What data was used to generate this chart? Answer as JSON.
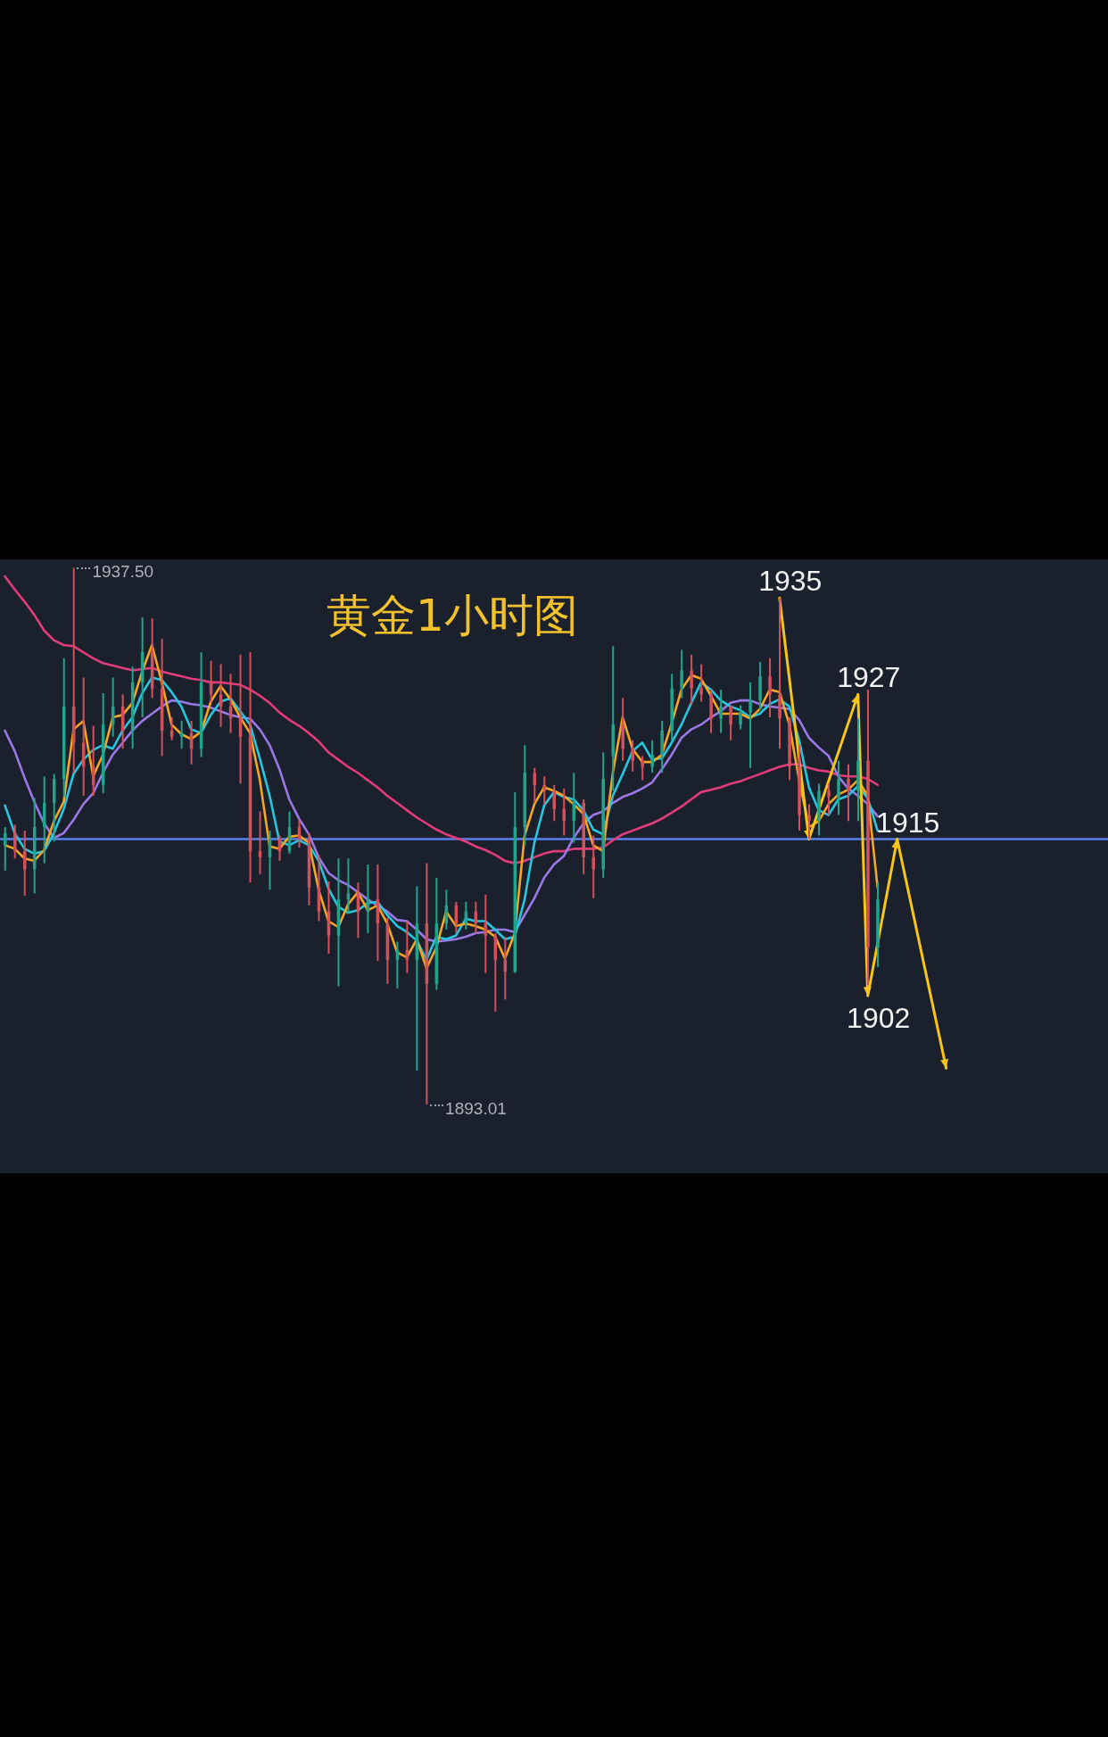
{
  "chart_data": {
    "type": "candlestick",
    "title": "黄金1小时图",
    "categories": [
      null,
      null,
      null,
      null,
      null,
      null,
      null,
      null,
      null,
      null,
      null,
      null,
      null,
      null,
      null,
      null,
      null,
      null,
      null,
      null,
      null,
      null,
      null,
      null,
      null,
      null,
      null,
      null,
      null,
      null,
      null,
      null,
      null,
      null,
      null,
      null,
      null,
      null,
      null,
      null,
      null,
      null,
      null,
      null,
      null,
      null,
      null,
      null,
      null,
      null,
      null,
      null,
      null,
      null,
      null,
      null,
      null,
      null,
      null,
      null,
      null,
      null,
      null,
      null,
      null,
      null,
      null,
      null,
      null,
      null,
      null,
      null,
      null,
      null,
      null,
      null,
      null,
      null,
      null,
      null,
      null,
      null,
      null,
      null,
      null,
      null,
      null,
      null,
      null,
      null,
      null,
      null,
      null,
      null,
      null,
      null,
      null,
      null,
      null,
      null,
      null,
      null,
      null,
      null,
      null,
      null,
      null,
      null,
      null,
      null,
      null,
      null,
      null
    ],
    "ohlc": [
      [
        1914.5,
        1916,
        1912.4,
        1915.5
      ],
      [
        1915.5,
        1916.2,
        1913.4,
        1914
      ],
      [
        1914,
        1915.7,
        1910.3,
        1912.5
      ],
      [
        1912.5,
        1918.4,
        1910.5,
        1916
      ],
      [
        1916,
        1920.2,
        1913,
        1918
      ],
      [
        1918,
        1920.4,
        1914.8,
        1920
      ],
      [
        1920,
        1930,
        1918.5,
        1926
      ],
      [
        1926,
        1937.5,
        1920.5,
        1923
      ],
      [
        1923,
        1928.4,
        1918.6,
        1921
      ],
      [
        1921,
        1924.4,
        1918.6,
        1919.5
      ],
      [
        1919.5,
        1927.1,
        1918.8,
        1924.5
      ],
      [
        1924.5,
        1928.4,
        1923.5,
        1926
      ],
      [
        1926,
        1927,
        1922.5,
        1924
      ],
      [
        1924,
        1929.3,
        1922.5,
        1928
      ],
      [
        1928,
        1933.4,
        1925.1,
        1930.5
      ],
      [
        1930.5,
        1933.3,
        1926.7,
        1927.5
      ],
      [
        1927.5,
        1931.6,
        1921.9,
        1924
      ],
      [
        1924,
        1925.1,
        1923.2,
        1923.5
      ],
      [
        1923.5,
        1924.8,
        1922.5,
        1923.8
      ],
      [
        1923.8,
        1924.8,
        1921.2,
        1922.5
      ],
      [
        1922.5,
        1930.5,
        1921.8,
        1928
      ],
      [
        1928,
        1929.8,
        1926.3,
        1927
      ],
      [
        1927,
        1929.5,
        1924.3,
        1926
      ],
      [
        1926,
        1928.7,
        1923.8,
        1925
      ],
      [
        1925,
        1930.3,
        1919.6,
        1923.5
      ],
      [
        1923.5,
        1930.5,
        1911.4,
        1914
      ],
      [
        1914,
        1917.3,
        1912.1,
        1913.5
      ],
      [
        1913.5,
        1915.7,
        1910.8,
        1915
      ],
      [
        1915,
        1915.3,
        1913.2,
        1914
      ],
      [
        1914,
        1917.3,
        1913.8,
        1916
      ],
      [
        1916,
        1916.6,
        1914.3,
        1915
      ],
      [
        1915,
        1915.5,
        1909.5,
        1911
      ],
      [
        1911,
        1913.7,
        1908.2,
        1909
      ],
      [
        1909,
        1911.5,
        1905.5,
        1907
      ],
      [
        1907,
        1913.4,
        1902.8,
        1910
      ],
      [
        1910,
        1913.4,
        1908.8,
        1910.5
      ],
      [
        1910.5,
        1911.4,
        1906.8,
        1909
      ],
      [
        1909,
        1912.9,
        1907.2,
        1910
      ],
      [
        1910,
        1912.9,
        1904.9,
        1908
      ],
      [
        1908,
        1908.5,
        1903,
        1905
      ],
      [
        1905,
        1906.5,
        1902.6,
        1905.8
      ],
      [
        1905.8,
        1908.2,
        1903.9,
        1905
      ],
      [
        1905,
        1911.1,
        1895.8,
        1908
      ],
      [
        1908,
        1913,
        1893.01,
        1903
      ],
      [
        1903,
        1911.8,
        1902.5,
        1908
      ],
      [
        1908,
        1910.8,
        1907.5,
        1909.5
      ],
      [
        1909.5,
        1909.8,
        1907.2,
        1908
      ],
      [
        1908,
        1909.8,
        1907.5,
        1909
      ],
      [
        1909,
        1909.8,
        1907.2,
        1908
      ],
      [
        1908,
        1910.4,
        1903.9,
        1907
      ],
      [
        1907,
        1907.2,
        1900.7,
        1905
      ],
      [
        1905,
        1906.9,
        1901.7,
        1904
      ],
      [
        1904,
        1918.9,
        1903.9,
        1916
      ],
      [
        1916,
        1922.8,
        1914.5,
        1920.5
      ],
      [
        1920.5,
        1920.9,
        1918,
        1919.5
      ],
      [
        1919.5,
        1920.2,
        1917.9,
        1919
      ],
      [
        1919,
        1919.5,
        1916.5,
        1917.5
      ],
      [
        1917.5,
        1919.2,
        1915.3,
        1916.5
      ],
      [
        1916.5,
        1920.5,
        1914.7,
        1918
      ],
      [
        1918,
        1918.3,
        1912.1,
        1913.5
      ],
      [
        1913.5,
        1915.3,
        1910.1,
        1912.5
      ],
      [
        1912.5,
        1922.2,
        1911.8,
        1920
      ],
      [
        1921.9,
        1931,
        1919,
        1924.5
      ],
      [
        1924.5,
        1926.7,
        1921.5,
        1922.5
      ],
      [
        1922.5,
        1923.2,
        1920.6,
        1921.5
      ],
      [
        1921.5,
        1921.9,
        1919.9,
        1921
      ],
      [
        1921,
        1923.2,
        1920.5,
        1922
      ],
      [
        1922,
        1924.8,
        1920.5,
        1924
      ],
      [
        1924,
        1928.7,
        1923.2,
        1927.5
      ],
      [
        1927.5,
        1930.7,
        1926.7,
        1929
      ],
      [
        1929,
        1930.3,
        1926.1,
        1927.5
      ],
      [
        1927.5,
        1929.5,
        1926.4,
        1927
      ],
      [
        1927,
        1927.4,
        1923.8,
        1925
      ],
      [
        1925,
        1927.4,
        1923.8,
        1926
      ],
      [
        1926,
        1926.1,
        1923.2,
        1924.5
      ],
      [
        1924.5,
        1926.1,
        1924.1,
        1925.5
      ],
      [
        1925.5,
        1928,
        1920.9,
        1926.5
      ],
      [
        1926.5,
        1929.7,
        1925.7,
        1928.5
      ],
      [
        1928.5,
        1930,
        1925.1,
        1927
      ],
      [
        1927,
        1935,
        1922.5,
        1925
      ],
      [
        1925,
        1925.1,
        1919.9,
        1921
      ],
      [
        1921,
        1922.8,
        1915.7,
        1917
      ],
      [
        1917,
        1917.9,
        1915,
        1916.5
      ],
      [
        1916.5,
        1919.6,
        1915.3,
        1919
      ],
      [
        1919,
        1919.6,
        1917,
        1918.5
      ],
      [
        1918.5,
        1921.5,
        1917,
        1920
      ],
      [
        1920,
        1921.2,
        1916.5,
        1919
      ],
      [
        1919,
        1925,
        1916.5,
        1921.5
      ],
      [
        1921.5,
        1927.4,
        1902.9,
        1906
      ],
      [
        1906,
        1911.4,
        1904.4,
        1910
      ],
      null,
      null,
      null,
      null,
      null,
      null,
      null,
      null,
      null,
      null,
      null,
      null,
      null,
      null,
      null,
      null,
      null,
      null,
      null,
      null,
      null,
      null,
      null
    ],
    "colors": [
      "#22a38c",
      "#d4515b",
      "#d4515b",
      "#22a38c",
      "#22a38c",
      "#22a38c",
      "#22a38c",
      "#d4515b",
      "#d4515b",
      "#d4515b",
      "#22a38c",
      "#22a38c",
      "#d4515b",
      "#22a38c",
      "#22a38c",
      "#d4515b",
      "#d4515b",
      "#d4515b",
      "#22a38c",
      "#d4515b",
      "#22a38c",
      "#d4515b",
      "#d4515b",
      "#d4515b",
      "#d4515b",
      "#d4515b",
      "#d4515b",
      "#22a38c",
      "#d4515b",
      "#22a38c",
      "#d4515b",
      "#d4515b",
      "#d4515b",
      "#d4515b",
      "#22a38c",
      "#22a38c",
      "#d4515b",
      "#22a38c",
      "#d4515b",
      "#d4515b",
      "#22a38c",
      "#d4515b",
      "#22a38c",
      "#d4515b",
      "#22a38c",
      "#22a38c",
      "#d4515b",
      "#22a38c",
      "#d4515b",
      "#d4515b",
      "#d4515b",
      "#d4515b",
      "#22a38c",
      "#22a38c",
      "#d4515b",
      "#d4515b",
      "#d4515b",
      "#d4515b",
      "#22a38c",
      "#d4515b",
      "#d4515b",
      "#22a38c",
      "#22a38c",
      "#d4515b",
      "#d4515b",
      "#d4515b",
      "#22a38c",
      "#22a38c",
      "#22a38c",
      "#22a38c",
      "#d4515b",
      "#d4515b",
      "#d4515b",
      "#22a38c",
      "#d4515b",
      "#22a38c",
      "#22a38c",
      "#22a38c",
      "#d4515b",
      "#d4515b",
      "#d4515b",
      "#d4515b",
      "#d4515b",
      "#22a38c",
      "#d4515b",
      "#22a38c",
      "#d4515b",
      "#22a38c",
      "#d4515b",
      "#22a38c",
      null,
      null,
      null,
      null,
      null,
      null,
      null,
      null,
      null,
      null,
      null,
      null,
      null,
      null,
      null,
      null,
      null,
      null,
      null,
      null,
      null,
      null,
      null
    ],
    "series": [
      {
        "type": "line",
        "color": "#e23c7c",
        "values": [
          1936.8,
          1935.7,
          1934.7,
          1933.6,
          1932.3,
          1931.5,
          1931.1,
          1931.0,
          1930.5,
          1930.0,
          1929.6,
          1929.4,
          1929.2,
          1929.0,
          1929.1,
          1929.2,
          1928.9,
          1928.7,
          1928.5,
          1928.3,
          1928.2,
          1928.0,
          1928.0,
          1927.9,
          1927.8,
          1927.4,
          1926.9,
          1926.3,
          1925.5,
          1924.9,
          1924.4,
          1923.8,
          1923.1,
          1922.2,
          1921.6,
          1921.0,
          1920.5,
          1919.9,
          1919.3,
          1918.6,
          1918.0,
          1917.4,
          1916.8,
          1916.3,
          1915.8,
          1915.4,
          1915.1,
          1914.8,
          1914.4,
          1914.1,
          1913.7,
          1913.2,
          1913.0,
          1913.2,
          1913.5,
          1913.8,
          1914.0,
          1914.0,
          1914.2,
          1914.2,
          1914.2,
          1914.3,
          1914.9,
          1915.4,
          1915.7,
          1916.0,
          1916.3,
          1916.7,
          1917.2,
          1917.7,
          1918.3,
          1918.9,
          1919.1,
          1919.3,
          1919.6,
          1919.8,
          1920.1,
          1920.4,
          1920.7,
          1921.0,
          1921.2,
          1921.2,
          1920.9,
          1920.7,
          1920.6,
          1920.3,
          1920.2,
          1920.2,
          1920.0,
          1919.5,
          null,
          null,
          null,
          null,
          null,
          null,
          null,
          null,
          null,
          null,
          null,
          null,
          null,
          null,
          null,
          null,
          null,
          null,
          null,
          null,
          null,
          null,
          null
        ]
      },
      {
        "type": "line",
        "color": "#9b78e6",
        "values": [
          1924.0,
          1922.3,
          1920.1,
          1918.1,
          1916.3,
          1915.1,
          1915.5,
          1916.6,
          1917.9,
          1918.8,
          1920.5,
          1922.0,
          1923.0,
          1924.0,
          1924.8,
          1925.4,
          1926.0,
          1926.5,
          1926.4,
          1926.2,
          1926.1,
          1925.9,
          1925.6,
          1925.3,
          1925.1,
          1925.0,
          1924.1,
          1922.8,
          1920.8,
          1918.3,
          1916.7,
          1915.4,
          1913.5,
          1912.2,
          1911.6,
          1911.2,
          1910.6,
          1910.0,
          1909.5,
          1909.0,
          1908.3,
          1908.2,
          1907.5,
          1906.7,
          1906.5,
          1906.6,
          1906.7,
          1906.9,
          1907.2,
          1907.3,
          1907.5,
          1907.5,
          1907.3,
          1908.7,
          1910.1,
          1911.8,
          1912.9,
          1913.6,
          1915.1,
          1916.3,
          1917.0,
          1917.3,
          1918.0,
          1918.5,
          1918.8,
          1919.2,
          1919.7,
          1920.8,
          1922.0,
          1923.4,
          1924.1,
          1924.5,
          1925.1,
          1925.6,
          1926.3,
          1926.5,
          1926.5,
          1926.2,
          1926.0,
          1925.9,
          1925.8,
          1924.9,
          1923.4,
          1922.6,
          1921.9,
          1920.2,
          1919.2,
          1918.6,
          1917.9,
          1916.9,
          null,
          null,
          null,
          null,
          null,
          null,
          null,
          null,
          null,
          null,
          null,
          null,
          null,
          null,
          null,
          null,
          null,
          null,
          null,
          null,
          null,
          null,
          null
        ]
      },
      {
        "type": "line",
        "color": "#26c6df",
        "values": [
          1917.8,
          1915.5,
          1914.2,
          1913.8,
          1914.0,
          1915.5,
          1917.5,
          1920.4,
          1921.6,
          1922.4,
          1922.8,
          1922.5,
          1924.0,
          1925.1,
          1927.1,
          1928.4,
          1928.2,
          1927.2,
          1926.0,
          1924.1,
          1923.8,
          1925.3,
          1926.4,
          1926.7,
          1925.6,
          1924.5,
          1921.7,
          1918.6,
          1914.8,
          1914.5,
          1914.9,
          1914.5,
          1913.2,
          1910.9,
          1909.4,
          1908.9,
          1909.1,
          1909.7,
          1909.8,
          1908.7,
          1907.8,
          1907.3,
          1906.6,
          1905.0,
          1906.9,
          1906.7,
          1907.0,
          1908.4,
          1908.2,
          1908.2,
          1907.5,
          1906.7,
          1906.9,
          1910.0,
          1914.7,
          1917.8,
          1918.9,
          1918.5,
          1918.3,
          1917.4,
          1915.8,
          1915.4,
          1918.6,
          1920.4,
          1922.3,
          1923.0,
          1921.6,
          1921.7,
          1923.0,
          1924.5,
          1926.3,
          1928.0,
          1927.4,
          1926.5,
          1926.0,
          1925.7,
          1925.1,
          1925.4,
          1926.2,
          1926.6,
          1926.0,
          1923.2,
          1919.3,
          1917.4,
          1917.0,
          1918.3,
          1918.6,
          1919.4,
          1918.4,
          1915.7,
          null,
          null,
          null,
          null,
          null,
          null,
          null,
          null,
          null,
          null,
          null,
          null,
          null,
          null,
          null,
          null,
          null,
          null,
          null,
          null,
          null,
          null,
          null
        ]
      },
      {
        "type": "line",
        "color": "#f5a623",
        "values": [
          1914.5,
          1914.2,
          1913.4,
          1913.2,
          1914.1,
          1916.5,
          1918.1,
          1924.1,
          1924.8,
          1920.2,
          1922.0,
          1925.1,
          1925.3,
          1926.3,
          1928.9,
          1931.1,
          1928.0,
          1924.5,
          1923.7,
          1923.3,
          1923.9,
          1926.4,
          1927.7,
          1926.6,
          1925.1,
          1923.8,
          1919.9,
          1914.4,
          1914.2,
          1915.2,
          1915.3,
          1914.7,
          1910.8,
          1908.2,
          1907.7,
          1909.6,
          1910.6,
          1909.1,
          1909.5,
          1908.0,
          1905.6,
          1905.2,
          1906.7,
          1904.3,
          1906.0,
          1909.0,
          1907.8,
          1908.0,
          1907.8,
          1907.5,
          1906.9,
          1905.1,
          1907.2,
          1915.3,
          1917.9,
          1919.3,
          1919.0,
          1918.6,
          1917.9,
          1917.1,
          1914.5,
          1914.0,
          1920.5,
          1925.1,
          1922.5,
          1921.4,
          1921.4,
          1922.0,
          1924.6,
          1927.4,
          1928.6,
          1928.3,
          1926.9,
          1925.4,
          1925.4,
          1925.4,
          1925.0,
          1925.8,
          1927.4,
          1927.2,
          1924.5,
          1919.9,
          1916.0,
          1916.5,
          1917.9,
          1918.7,
          1919.1,
          1919.9,
          1918.6,
          1911.0,
          null,
          null,
          null,
          null,
          null,
          null,
          null,
          null,
          null,
          null,
          null,
          null,
          null,
          null,
          null,
          null,
          null,
          null,
          null,
          null,
          null,
          null,
          null
        ]
      },
      {
        "type": "line",
        "color": "#f5c518",
        "values": [
          null,
          null,
          null,
          null,
          null,
          null,
          null,
          null,
          null,
          null,
          null,
          null,
          null,
          null,
          null,
          null,
          null,
          null,
          null,
          null,
          null,
          null,
          null,
          null,
          null,
          null,
          null,
          null,
          null,
          null,
          null,
          null,
          null,
          null,
          null,
          null,
          null,
          null,
          null,
          null,
          null,
          null,
          null,
          null,
          null,
          null,
          null,
          null,
          null,
          null,
          null,
          null,
          null,
          null,
          null,
          null,
          null,
          null,
          null,
          null,
          null,
          null,
          null,
          null,
          null,
          null,
          null,
          null,
          null,
          null,
          null,
          null,
          null,
          null,
          null,
          null,
          null,
          null,
          null,
          1935,
          null,
          null,
          1915,
          null,
          null,
          null,
          null,
          1927,
          1902,
          null,
          null,
          1915,
          null,
          null,
          null,
          null,
          1896,
          null,
          null,
          null,
          null,
          null,
          null,
          null,
          null,
          null,
          null,
          null,
          null,
          null,
          null,
          null,
          null
        ],
        "value_labels": [
          null,
          null,
          null,
          null,
          null,
          null,
          null,
          null,
          null,
          null,
          null,
          null,
          null,
          null,
          null,
          null,
          null,
          null,
          null,
          null,
          null,
          null,
          null,
          null,
          null,
          null,
          null,
          null,
          null,
          null,
          null,
          null,
          null,
          null,
          null,
          null,
          null,
          null,
          null,
          null,
          null,
          null,
          null,
          null,
          null,
          null,
          null,
          null,
          null,
          null,
          null,
          null,
          null,
          null,
          null,
          null,
          null,
          null,
          null,
          null,
          null,
          null,
          null,
          null,
          null,
          null,
          null,
          null,
          null,
          null,
          null,
          null,
          null,
          null,
          null,
          null,
          null,
          null,
          null,
          "1935",
          null,
          null,
          null,
          null,
          null,
          null,
          null,
          "1927",
          "1902",
          null,
          null,
          "1915",
          null,
          null,
          null,
          null,
          null,
          null,
          null,
          null,
          null,
          null,
          null,
          null,
          null,
          null,
          null,
          null,
          null,
          null,
          null,
          null,
          null
        ]
      }
    ],
    "ylim": [
      1887.3,
      1938.2
    ],
    "ref_lines": [
      {
        "axis": "y",
        "value": 1915,
        "color": "#5b80e8"
      }
    ],
    "annotations": [
      "1937.50",
      "1893.01"
    ],
    "tick_labels": false
  }
}
